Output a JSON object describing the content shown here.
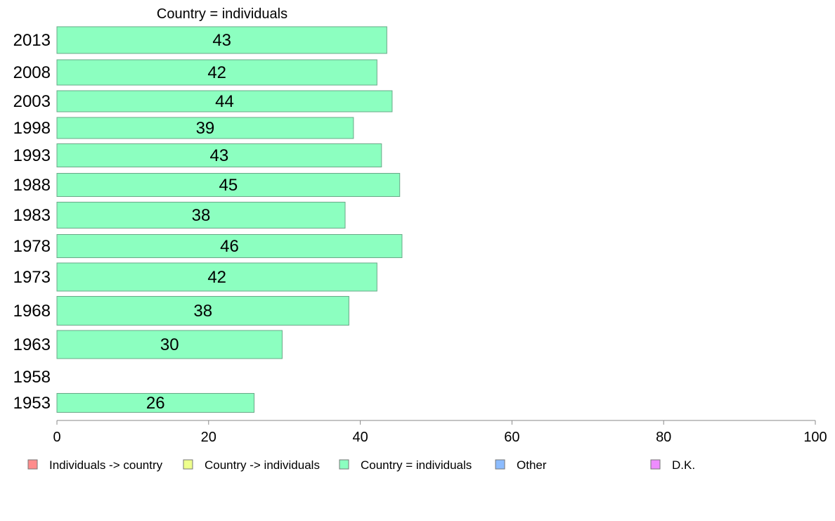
{
  "chart_data": {
    "type": "bar",
    "orientation": "horizontal",
    "title": "Country = individuals",
    "xlabel": "",
    "ylabel": "",
    "xlim": [
      0,
      100
    ],
    "x_ticks": [
      "0",
      "20",
      "40",
      "60",
      "80",
      "100"
    ],
    "grid": false,
    "categories": [
      "2013",
      "2008",
      "2003",
      "1998",
      "1993",
      "1988",
      "1983",
      "1978",
      "1973",
      "1968",
      "1963",
      "1958",
      "1953"
    ],
    "series": [
      {
        "name": "Country = individuals",
        "color": "#8cffc0",
        "values": [
          43.5,
          42.2,
          44.2,
          39.1,
          42.8,
          45.2,
          38.0,
          45.5,
          42.2,
          38.5,
          29.7,
          null,
          26.0
        ],
        "data_labels": [
          "43",
          "42",
          "44",
          "39",
          "43",
          "45",
          "38",
          "46",
          "42",
          "38",
          "30",
          "",
          "26"
        ]
      }
    ],
    "legend_position": "bottom",
    "legend": [
      {
        "label": "Individuals -> country",
        "color": "#ff8c8c"
      },
      {
        "label": "Country -> individuals",
        "color": "#eeff8c"
      },
      {
        "label": "Country = individuals",
        "color": "#8cffc0"
      },
      {
        "label": "Other",
        "color": "#8cbcff"
      },
      {
        "label": "D.K.",
        "color": "#ee8cff"
      }
    ]
  }
}
